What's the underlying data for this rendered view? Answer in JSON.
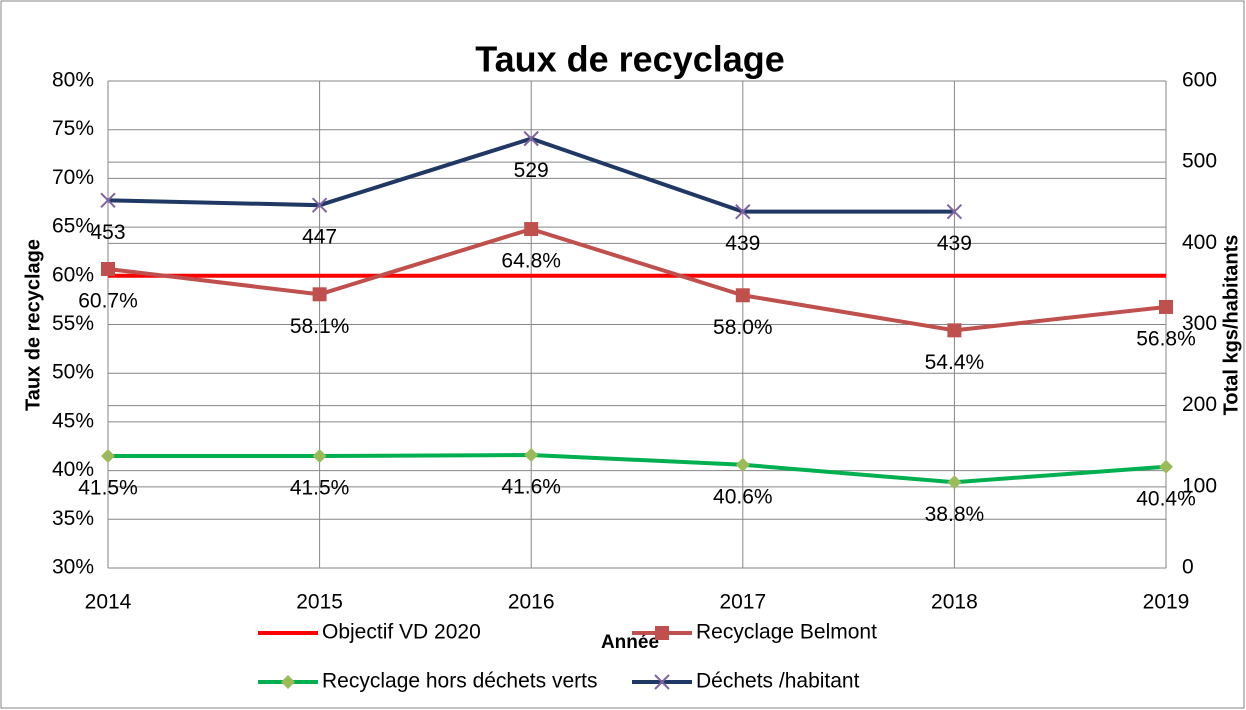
{
  "chart_data": {
    "type": "line",
    "title": "Taux de recyclage",
    "x_label": "Année",
    "y_label": "Taux de recyclage",
    "y2_label": "Total kgs/habitants",
    "categories": [
      "2014",
      "2015",
      "2016",
      "2017",
      "2018",
      "2019"
    ],
    "ylim": [
      30,
      80
    ],
    "yticks": [
      {
        "value": 30,
        "label": "30%"
      },
      {
        "value": 35,
        "label": "35%"
      },
      {
        "value": 40,
        "label": "40%"
      },
      {
        "value": 45,
        "label": "45%"
      },
      {
        "value": 50,
        "label": "50%"
      },
      {
        "value": 55,
        "label": "55%"
      },
      {
        "value": 60,
        "label": "60%"
      },
      {
        "value": 65,
        "label": "65%"
      },
      {
        "value": 70,
        "label": "70%"
      },
      {
        "value": 75,
        "label": "75%"
      },
      {
        "value": 80,
        "label": "80%"
      }
    ],
    "y2lim": [
      0,
      600
    ],
    "y2ticks": [
      0,
      100,
      200,
      300,
      400,
      500,
      600
    ],
    "grid": true,
    "legend": "bottom",
    "series": [
      {
        "name": "Objectif VD 2020",
        "color": "#ff0000",
        "values": [
          60,
          60,
          60,
          60,
          60,
          60
        ]
      },
      {
        "name": "Recyclage Belmont",
        "color": "#c0504d",
        "marker": "square",
        "marker_color": "#c0504d",
        "values": [
          60.7,
          58.1,
          64.8,
          58.0,
          54.4,
          56.8
        ],
        "value_labels": [
          "60.7%",
          "58.1%",
          "64.8%",
          "58.0%",
          "54.4%",
          "56.8%"
        ]
      },
      {
        "name": "Recyclage hors déchets verts",
        "color": "#00b050",
        "marker": "diamond",
        "marker_color": "#9bbb59",
        "values": [
          41.5,
          41.5,
          41.6,
          40.6,
          38.8,
          40.4
        ],
        "value_labels": [
          "41.5%",
          "41.5%",
          "41.6%",
          "40.6%",
          "38.8%",
          "40.4%"
        ]
      },
      {
        "name": "Déchets /habitant",
        "color": "#1f3864",
        "marker": "x",
        "marker_color": "#8064a2",
        "axis": "y2",
        "values": [
          453,
          447,
          529,
          439,
          439,
          null
        ]
      }
    ]
  }
}
